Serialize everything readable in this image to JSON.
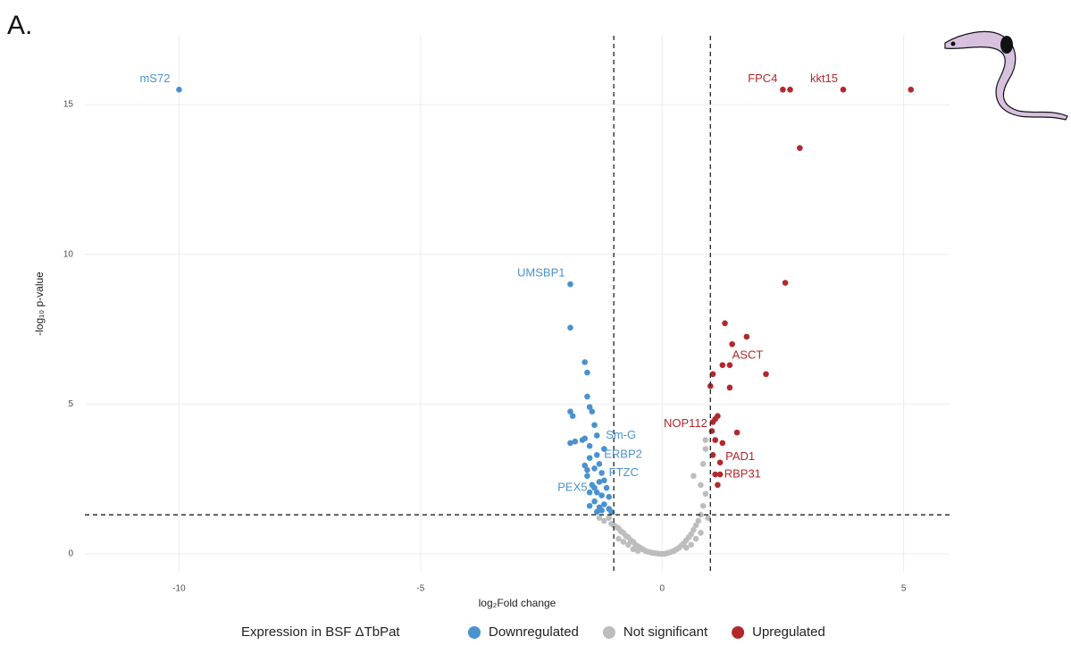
{
  "panel_label": "A.",
  "chart_data": {
    "type": "scatter",
    "x_label": "log₂Fold change",
    "y_label": "-log₁₀ p-value",
    "xlim": [
      -11.95,
      5.95
    ],
    "ylim": [
      -0.6,
      17.3
    ],
    "xticks": [
      -10,
      -5,
      0,
      5
    ],
    "yticks": [
      0,
      5,
      10,
      15
    ],
    "grid": true,
    "vlines": [
      -1,
      1
    ],
    "hline": 1.3,
    "legend_title": "Expression in BSF ΔTbPat",
    "legend_position": "bottom",
    "series": [
      {
        "name": "Downregulated",
        "color": "#4a92cf",
        "x": [
          -10,
          -1.9,
          -1.9,
          -1.6,
          -1.55,
          -1.55,
          -1.5,
          -1.45,
          -1.9,
          -1.85,
          -1.4,
          -1.35,
          -1.6,
          -1.65,
          -1.9,
          -1.8,
          -1.5,
          -1.2,
          -1.35,
          -1.5,
          -1.3,
          -1.6,
          -1.4,
          -1.55,
          -1.25,
          -1.55,
          -1.2,
          -1.3,
          -1.45,
          -1.4,
          -1.15,
          -1.35,
          -1.5,
          -1.25,
          -1.1,
          -1.4,
          -1.2,
          -1.5,
          -1.3,
          -1.1,
          -1.25,
          -1.05,
          -1.35
        ],
        "values": [
          15.5,
          9.0,
          7.55,
          6.4,
          6.05,
          5.25,
          4.9,
          4.75,
          4.75,
          4.6,
          4.3,
          3.95,
          3.85,
          3.8,
          3.7,
          3.75,
          3.6,
          3.5,
          3.3,
          3.2,
          3.0,
          2.95,
          2.85,
          2.8,
          2.7,
          2.6,
          2.45,
          2.4,
          2.3,
          2.2,
          2.2,
          2.05,
          2.05,
          1.95,
          1.9,
          1.75,
          1.65,
          1.6,
          1.55,
          1.5,
          1.45,
          1.4,
          1.4
        ],
        "labels": [
          "mS72",
          "UMSBP1",
          null,
          null,
          null,
          null,
          null,
          null,
          null,
          null,
          null,
          "Sm-G",
          null,
          null,
          null,
          null,
          null,
          null,
          "ERBP2",
          null,
          null,
          null,
          null,
          null,
          "FTZC",
          null,
          null,
          null,
          null,
          "PEX5",
          null,
          null,
          null,
          null,
          null,
          null,
          null,
          null,
          null,
          null,
          null,
          null,
          null
        ]
      },
      {
        "name": "Not significant",
        "color": "#bdbdbd",
        "x": [
          -1.3,
          -1.2,
          -1.1,
          -1.05,
          -1.0,
          -0.95,
          -0.9,
          -0.85,
          -0.8,
          -0.75,
          -0.7,
          -0.65,
          -0.6,
          -0.55,
          -0.5,
          -0.45,
          -0.4,
          -0.35,
          -0.3,
          -0.25,
          -0.2,
          -0.15,
          -0.1,
          -0.05,
          0,
          0.05,
          0.1,
          0.15,
          0.2,
          0.25,
          0.3,
          0.35,
          0.4,
          0.45,
          0.5,
          0.55,
          0.6,
          0.65,
          0.7,
          0.75,
          0.8,
          0.85,
          0.9,
          0.95,
          0.65,
          0.8,
          0.85,
          0.9,
          0.9,
          -0.9,
          -0.8,
          -0.7,
          0.7,
          0.8,
          0.6,
          -0.6,
          -0.5,
          0.5
        ],
        "values": [
          1.2,
          1.1,
          1.2,
          1.0,
          0.95,
          0.9,
          0.85,
          0.75,
          0.7,
          0.6,
          0.55,
          0.45,
          0.4,
          0.3,
          0.25,
          0.2,
          0.15,
          0.1,
          0.07,
          0.05,
          0.03,
          0.02,
          0.01,
          0,
          0,
          0,
          0.02,
          0.04,
          0.07,
          0.1,
          0.15,
          0.2,
          0.28,
          0.35,
          0.45,
          0.55,
          0.65,
          0.8,
          0.95,
          1.1,
          1.3,
          1.6,
          2.0,
          1.2,
          2.6,
          2.3,
          3.0,
          3.5,
          3.8,
          0.5,
          0.4,
          0.3,
          0.5,
          0.7,
          0.3,
          0.15,
          0.1,
          0.2
        ]
      },
      {
        "name": "Upregulated",
        "color": "#b2282c",
        "x": [
          2.5,
          2.65,
          3.75,
          5.15,
          2.85,
          2.55,
          1.3,
          1.75,
          1.45,
          1.25,
          1.4,
          1.05,
          2.15,
          1.0,
          1.4,
          1.15,
          1.1,
          1.05,
          1.03,
          1.55,
          1.1,
          1.25,
          1.05,
          1.2,
          1.1,
          1.2,
          1.15
        ],
        "values": [
          15.5,
          15.5,
          15.5,
          15.5,
          13.55,
          9.05,
          7.7,
          7.25,
          7.0,
          6.3,
          6.3,
          6.0,
          6.0,
          5.6,
          5.55,
          4.6,
          4.5,
          4.4,
          4.1,
          4.05,
          3.8,
          3.7,
          3.3,
          3.05,
          2.65,
          2.65,
          2.3
        ],
        "labels": [
          "FPC4",
          null,
          "kkt15",
          null,
          null,
          null,
          null,
          null,
          "ASCT",
          null,
          null,
          null,
          null,
          null,
          null,
          null,
          null,
          null,
          "NOP112",
          null,
          null,
          null,
          null,
          "PAD1",
          "RBP31",
          null,
          null
        ]
      }
    ]
  }
}
